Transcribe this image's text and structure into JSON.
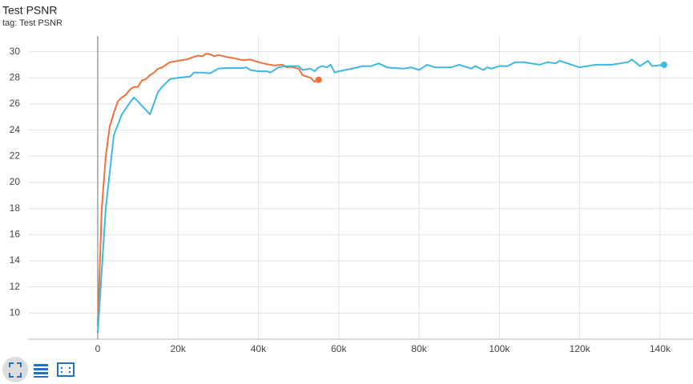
{
  "chart_data": {
    "type": "line",
    "title": "Test PSNR",
    "subtitle": "tag: Test PSNR",
    "series": [
      {
        "color": "#f0703a",
        "x": [
          0,
          1000,
          2000,
          3000,
          4000,
          5000,
          6000,
          7000,
          8000,
          9000,
          10000,
          11000,
          12000,
          13000,
          14000,
          15000,
          16000,
          17000,
          18000,
          20000,
          22000,
          24000,
          25000,
          26000,
          27000,
          28000,
          29000,
          30000,
          32000,
          34000,
          36000,
          38000,
          40000,
          42000,
          44000,
          46000,
          47000,
          48000,
          50000,
          51000,
          52000,
          53000,
          54000,
          55000
        ],
        "values": [
          9.0,
          18,
          22,
          24.3,
          25.3,
          26.2,
          26.5,
          26.7,
          27.1,
          27.3,
          27.3,
          27.8,
          27.9,
          28.2,
          28.4,
          28.7,
          28.8,
          29.0,
          29.2,
          29.3,
          29.4,
          29.6,
          29.7,
          29.65,
          29.85,
          29.8,
          29.65,
          29.75,
          29.6,
          29.5,
          29.35,
          29.4,
          29.2,
          29.05,
          28.95,
          29.0,
          28.8,
          28.85,
          28.7,
          28.2,
          28.1,
          28.0,
          27.7,
          27.85
        ]
      },
      {
        "color": "#3db8e0",
        "x": [
          0,
          2000,
          4000,
          6000,
          8000,
          9000,
          10000,
          13000,
          15000,
          16000,
          18000,
          20000,
          23000,
          24000,
          26000,
          28000,
          30000,
          32000,
          36000,
          37000,
          38000,
          40000,
          42000,
          43000,
          45000,
          47000,
          50000,
          51000,
          53000,
          54000,
          55000,
          56000,
          57000,
          58000,
          59000,
          60000,
          64000,
          66000,
          68000,
          70000,
          72000,
          76000,
          78000,
          80000,
          82000,
          84000,
          88000,
          90000,
          93000,
          94000,
          96000,
          97000,
          98000,
          100000,
          102000,
          104000,
          106000,
          110000,
          112000,
          114000,
          115000,
          118000,
          120000,
          124000,
          128000,
          130000,
          132000,
          133000,
          135000,
          137000,
          138000,
          141000
        ],
        "values": [
          8.5,
          18,
          23.6,
          25.2,
          26.1,
          26.5,
          26.2,
          25.2,
          26.9,
          27.3,
          27.9,
          28.0,
          28.1,
          28.4,
          28.4,
          28.35,
          28.7,
          28.75,
          28.75,
          28.8,
          28.6,
          28.5,
          28.5,
          28.4,
          28.8,
          28.9,
          28.9,
          28.6,
          28.7,
          28.5,
          28.8,
          28.9,
          28.8,
          29.0,
          28.4,
          28.5,
          28.75,
          28.9,
          28.9,
          29.1,
          28.8,
          28.7,
          28.8,
          28.6,
          29.0,
          28.8,
          28.8,
          29.0,
          28.7,
          28.9,
          28.6,
          28.8,
          28.7,
          28.9,
          28.9,
          29.2,
          29.2,
          29.0,
          29.2,
          29.1,
          29.3,
          29.0,
          28.8,
          29.0,
          29.0,
          29.1,
          29.2,
          29.4,
          28.9,
          29.3,
          28.9,
          29.0
        ]
      }
    ],
    "xlim": [
      -17350,
      148200
    ],
    "ylim": [
      8,
      31.2
    ],
    "xticks": [
      0,
      {
        "value": 20000,
        "label": "20k"
      },
      {
        "value": 40000,
        "label": "40k"
      },
      {
        "value": 60000,
        "label": "60k"
      },
      {
        "value": 80000,
        "label": "80k"
      },
      {
        "value": 100000,
        "label": "100k"
      },
      {
        "value": 120000,
        "label": "120k"
      },
      {
        "value": 140000,
        "label": "140k"
      }
    ],
    "yticks": [
      10,
      12,
      14,
      16,
      18,
      20,
      22,
      24,
      26,
      28,
      30
    ],
    "grid": true
  }
}
